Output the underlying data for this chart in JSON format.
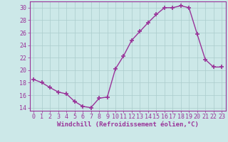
{
  "x": [
    0,
    1,
    2,
    3,
    4,
    5,
    6,
    7,
    8,
    9,
    10,
    11,
    12,
    13,
    14,
    15,
    16,
    17,
    18,
    19,
    20,
    21,
    22,
    23
  ],
  "y": [
    18.5,
    18.0,
    17.2,
    16.5,
    16.2,
    15.0,
    14.2,
    14.0,
    15.5,
    15.7,
    20.2,
    22.3,
    24.8,
    26.2,
    27.6,
    28.9,
    30.0,
    30.0,
    30.3,
    30.0,
    25.8,
    21.7,
    20.5,
    20.5
  ],
  "line_color": "#993399",
  "marker": "+",
  "marker_size": 4,
  "marker_lw": 1.2,
  "bg_color": "#cce8e8",
  "grid_color": "#aacccc",
  "xlabel": "Windchill (Refroidissement éolien,°C)",
  "xlabel_color": "#993399",
  "tick_color": "#993399",
  "spine_color": "#993399",
  "ylim": [
    13.5,
    31
  ],
  "xlim": [
    -0.5,
    23.5
  ],
  "yticks": [
    14,
    16,
    18,
    20,
    22,
    24,
    26,
    28,
    30
  ],
  "xticks": [
    0,
    1,
    2,
    3,
    4,
    5,
    6,
    7,
    8,
    9,
    10,
    11,
    12,
    13,
    14,
    15,
    16,
    17,
    18,
    19,
    20,
    21,
    22,
    23
  ],
  "tick_fontsize": 6.0,
  "xlabel_fontsize": 6.5,
  "line_width": 1.0
}
